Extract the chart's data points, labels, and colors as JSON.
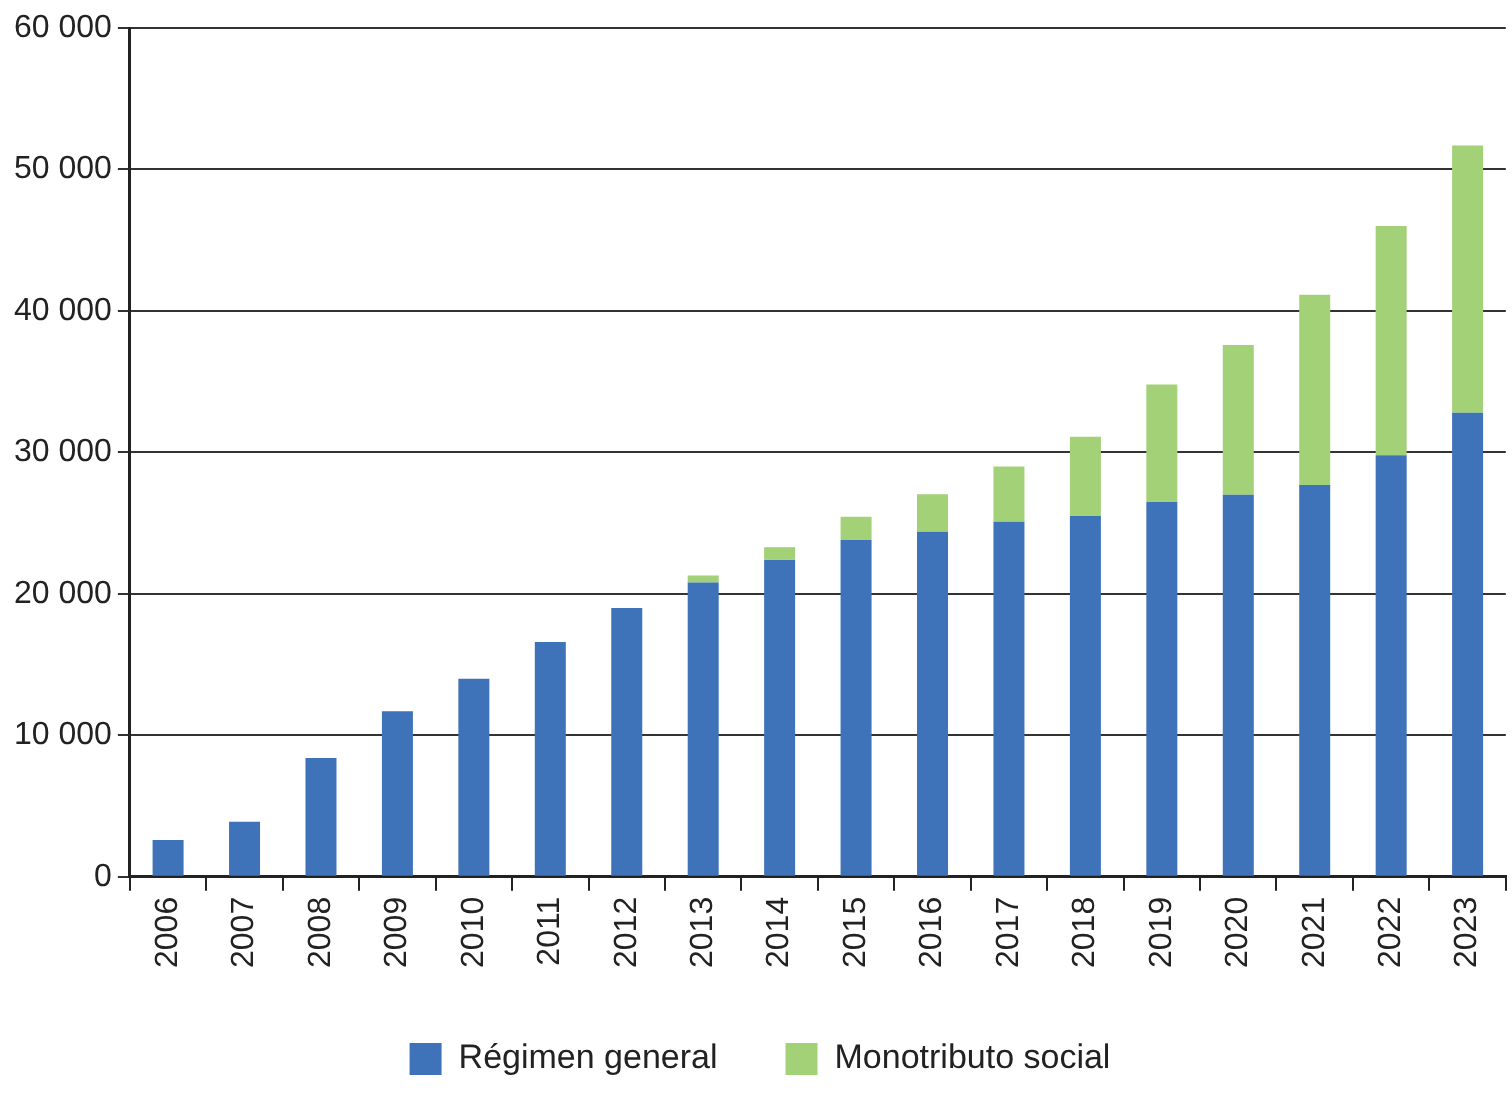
{
  "chart_data": {
    "type": "bar",
    "stacked": true,
    "categories": [
      "2006",
      "2007",
      "2008",
      "2009",
      "2010",
      "2011",
      "2012",
      "2013",
      "2014",
      "2015",
      "2016",
      "2017",
      "2018",
      "2019",
      "2020",
      "2021",
      "2022",
      "2023"
    ],
    "series": [
      {
        "name": "Régimen general",
        "color": "#3e73b9",
        "values": [
          2600,
          3900,
          8400,
          11700,
          14000,
          16600,
          19000,
          20800,
          22400,
          23800,
          24400,
          25100,
          25500,
          26500,
          27000,
          27700,
          29800,
          32800
        ]
      },
      {
        "name": "Monotributo social",
        "color": "#a3d178",
        "values": [
          0,
          0,
          0,
          0,
          0,
          0,
          0,
          500,
          900,
          1650,
          2650,
          3900,
          5600,
          8300,
          10600,
          13450,
          16200,
          18900
        ]
      }
    ],
    "ylim": [
      0,
      60000
    ],
    "yticks": [
      0,
      {
        "value": 10000,
        "label": "10 000"
      },
      {
        "value": 20000,
        "label": "20 000"
      },
      {
        "value": 30000,
        "label": "30 000"
      },
      {
        "value": 40000,
        "label": "40 000"
      },
      {
        "value": 50000,
        "label": "50 000"
      },
      {
        "value": 60000,
        "label": "60 000"
      }
    ],
    "grid": "y",
    "legend": "bottom"
  }
}
